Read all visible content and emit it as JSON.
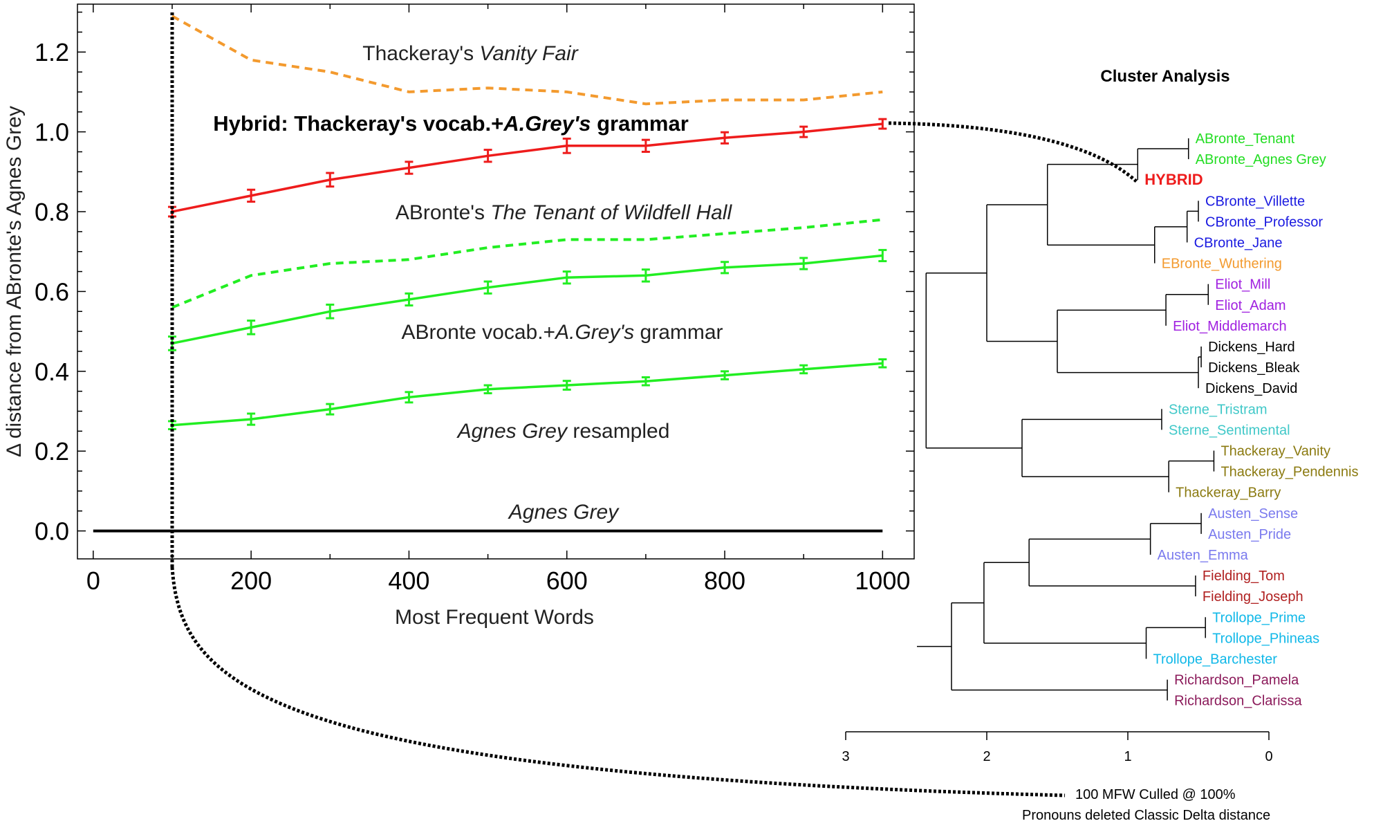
{
  "chart_data": [
    {
      "type": "line",
      "title": "",
      "xlabel": "Most Frequent Words",
      "ylabel": "Δ distance from ABronte's Agnes Grey",
      "xlim": [
        -20,
        1040
      ],
      "ylim": [
        -0.07,
        1.32
      ],
      "x_ticks": [
        0,
        200,
        400,
        600,
        800,
        1000
      ],
      "y_ticks": [
        0.0,
        0.2,
        0.4,
        0.6,
        0.8,
        1.0,
        1.2
      ],
      "grid": false,
      "marker_line_x": 100,
      "series": [
        {
          "key": "vanity",
          "color": "#f39a2e",
          "dashed": true,
          "error_bars": false,
          "x": [
            100,
            200,
            300,
            400,
            500,
            600,
            700,
            800,
            900,
            1000
          ],
          "y": [
            1.29,
            1.18,
            1.15,
            1.1,
            1.11,
            1.1,
            1.07,
            1.08,
            1.08,
            1.1
          ]
        },
        {
          "key": "hybrid",
          "color": "#ee1c1c",
          "dashed": false,
          "error_bars": true,
          "x": [
            100,
            200,
            300,
            400,
            500,
            600,
            700,
            800,
            900,
            1000
          ],
          "y": [
            0.8,
            0.84,
            0.88,
            0.91,
            0.94,
            0.965,
            0.965,
            0.985,
            1.0,
            1.02
          ],
          "err": [
            0.012,
            0.015,
            0.017,
            0.015,
            0.015,
            0.018,
            0.015,
            0.014,
            0.013,
            0.012
          ]
        },
        {
          "key": "tenant",
          "color": "#22ee22",
          "dashed": true,
          "error_bars": false,
          "x": [
            100,
            200,
            300,
            400,
            500,
            600,
            700,
            800,
            900,
            1000
          ],
          "y": [
            0.56,
            0.64,
            0.67,
            0.68,
            0.71,
            0.73,
            0.73,
            0.745,
            0.76,
            0.78
          ]
        },
        {
          "key": "abronte_vocab",
          "color": "#22ee22",
          "dashed": false,
          "error_bars": true,
          "x": [
            100,
            200,
            300,
            400,
            500,
            600,
            700,
            800,
            900,
            1000
          ],
          "y": [
            0.47,
            0.51,
            0.55,
            0.58,
            0.61,
            0.635,
            0.64,
            0.66,
            0.67,
            0.69
          ],
          "err": [
            0.017,
            0.017,
            0.017,
            0.015,
            0.015,
            0.015,
            0.015,
            0.014,
            0.014,
            0.014
          ]
        },
        {
          "key": "resampled",
          "color": "#22ee22",
          "dashed": false,
          "error_bars": true,
          "x": [
            100,
            200,
            300,
            400,
            500,
            600,
            700,
            800,
            900,
            1000
          ],
          "y": [
            0.265,
            0.28,
            0.305,
            0.335,
            0.355,
            0.365,
            0.375,
            0.39,
            0.405,
            0.42
          ],
          "err": [
            0.01,
            0.014,
            0.013,
            0.013,
            0.01,
            0.011,
            0.01,
            0.01,
            0.01,
            0.01
          ]
        },
        {
          "key": "agnes",
          "color": "#000000",
          "dashed": false,
          "error_bars": false,
          "x": [
            0,
            1000
          ],
          "y": [
            0,
            0
          ]
        }
      ],
      "annotations": {
        "vanity": {
          "pre": "Thackeray's ",
          "em": "Vanity Fair",
          "post": ""
        },
        "hybrid": {
          "pre": "Hybrid: Thackeray's vocab.+",
          "em": "A.Grey's",
          "post": " grammar"
        },
        "tenant": {
          "pre": "ABronte's ",
          "em": "The Tenant of Wildfell Hall",
          "post": ""
        },
        "abronte_vocab": {
          "pre": "ABronte vocab.+",
          "em": "A.Grey's",
          "post": " grammar"
        },
        "resampled": {
          "pre": "",
          "em": "Agnes Grey",
          "post": " resampled"
        },
        "agnes": {
          "pre": "",
          "em": "Agnes Grey",
          "post": ""
        }
      }
    },
    {
      "type": "dendrogram",
      "title": "Cluster Analysis",
      "axis_ticks": [
        3,
        2,
        1,
        0
      ],
      "axis_min": 0,
      "axis_max": 3,
      "leaves": [
        {
          "label": "ABronte_Tenant",
          "color": "#22dd22"
        },
        {
          "label": "ABronte_Agnes Grey",
          "color": "#22dd22"
        },
        {
          "label": "HYBRID",
          "color": "#ee1c1c",
          "bold": true
        },
        {
          "label": "CBronte_Villette",
          "color": "#1a1ae0"
        },
        {
          "label": "CBronte_Professor",
          "color": "#1a1ae0"
        },
        {
          "label": "CBronte_Jane",
          "color": "#1a1ae0"
        },
        {
          "label": "EBronte_Wuthering",
          "color": "#f39a2e"
        },
        {
          "label": "Eliot_Mill",
          "color": "#a020e0"
        },
        {
          "label": "Eliot_Adam",
          "color": "#a020e0"
        },
        {
          "label": "Eliot_Middlemarch",
          "color": "#a020e0"
        },
        {
          "label": "Dickens_Hard",
          "color": "#000000"
        },
        {
          "label": "Dickens_Bleak",
          "color": "#000000"
        },
        {
          "label": "Dickens_David",
          "color": "#000000"
        },
        {
          "label": "Sterne_Tristram",
          "color": "#40c8c8"
        },
        {
          "label": "Sterne_Sentimental",
          "color": "#40c8c8"
        },
        {
          "label": "Thackeray_Vanity",
          "color": "#8b7a10"
        },
        {
          "label": "Thackeray_Pendennis",
          "color": "#8b7a10"
        },
        {
          "label": "Thackeray_Barry",
          "color": "#8b7a10"
        },
        {
          "label": "Austen_Sense",
          "color": "#7a7aee"
        },
        {
          "label": "Austen_Pride",
          "color": "#7a7aee"
        },
        {
          "label": "Austen_Emma",
          "color": "#7a7aee"
        },
        {
          "label": "Fielding_Tom",
          "color": "#b02020"
        },
        {
          "label": "Fielding_Joseph",
          "color": "#b02020"
        },
        {
          "label": "Trollope_Prime",
          "color": "#10b8e8"
        },
        {
          "label": "Trollope_Phineas",
          "color": "#10b8e8"
        },
        {
          "label": "Trollope_Barchester",
          "color": "#10b8e8"
        },
        {
          "label": "Richardson_Pamela",
          "color": "#8b1a5a"
        },
        {
          "label": "Richardson_Clarissa",
          "color": "#8b1a5a"
        }
      ],
      "merges": [
        {
          "id": "A",
          "left": 0,
          "right": 1,
          "height": 0.57
        },
        {
          "id": "B",
          "left": "A",
          "right": 2,
          "height": 0.93
        },
        {
          "id": "C",
          "left": 3,
          "right": 4,
          "height": 0.5
        },
        {
          "id": "D",
          "left": "C",
          "right": 5,
          "height": 0.58
        },
        {
          "id": "E",
          "left": "D",
          "right": 6,
          "height": 0.81
        },
        {
          "id": "F",
          "left": "B",
          "right": "E",
          "height": 1.57
        },
        {
          "id": "G",
          "left": 7,
          "right": 8,
          "height": 0.43
        },
        {
          "id": "H",
          "left": "G",
          "right": 9,
          "height": 0.73
        },
        {
          "id": "I",
          "left": 10,
          "right": 11,
          "height": 0.48
        },
        {
          "id": "J",
          "left": "I",
          "right": 12,
          "height": 0.5
        },
        {
          "id": "K",
          "left": "H",
          "right": "J",
          "height": 1.5
        },
        {
          "id": "L",
          "left": "F",
          "right": "K",
          "height": 2.0
        },
        {
          "id": "M",
          "left": 13,
          "right": 14,
          "height": 0.76
        },
        {
          "id": "N",
          "left": 15,
          "right": 16,
          "height": 0.39
        },
        {
          "id": "O",
          "left": "N",
          "right": 17,
          "height": 0.71
        },
        {
          "id": "P",
          "left": "M",
          "right": "O",
          "height": 1.75
        },
        {
          "id": "Q",
          "left": "L",
          "right": "P",
          "height": 2.43
        },
        {
          "id": "R",
          "left": 18,
          "right": 19,
          "height": 0.48
        },
        {
          "id": "S",
          "left": "R",
          "right": 20,
          "height": 0.84
        },
        {
          "id": "T",
          "left": 21,
          "right": 22,
          "height": 0.52
        },
        {
          "id": "U",
          "left": "S",
          "right": "T",
          "height": 1.7
        },
        {
          "id": "V",
          "left": 23,
          "right": 24,
          "height": 0.45
        },
        {
          "id": "W",
          "left": "V",
          "right": 25,
          "height": 0.87
        },
        {
          "id": "X",
          "left": "U",
          "right": "W",
          "height": 2.02
        },
        {
          "id": "Y",
          "left": 26,
          "right": 27,
          "height": 0.72
        },
        {
          "id": "Z",
          "left": "X",
          "right": "Y",
          "height": 2.25
        }
      ],
      "caption_line1": "100 MFW  Culled @ 100%",
      "caption_line2": "Pronouns deleted Classic Delta distance"
    }
  ]
}
